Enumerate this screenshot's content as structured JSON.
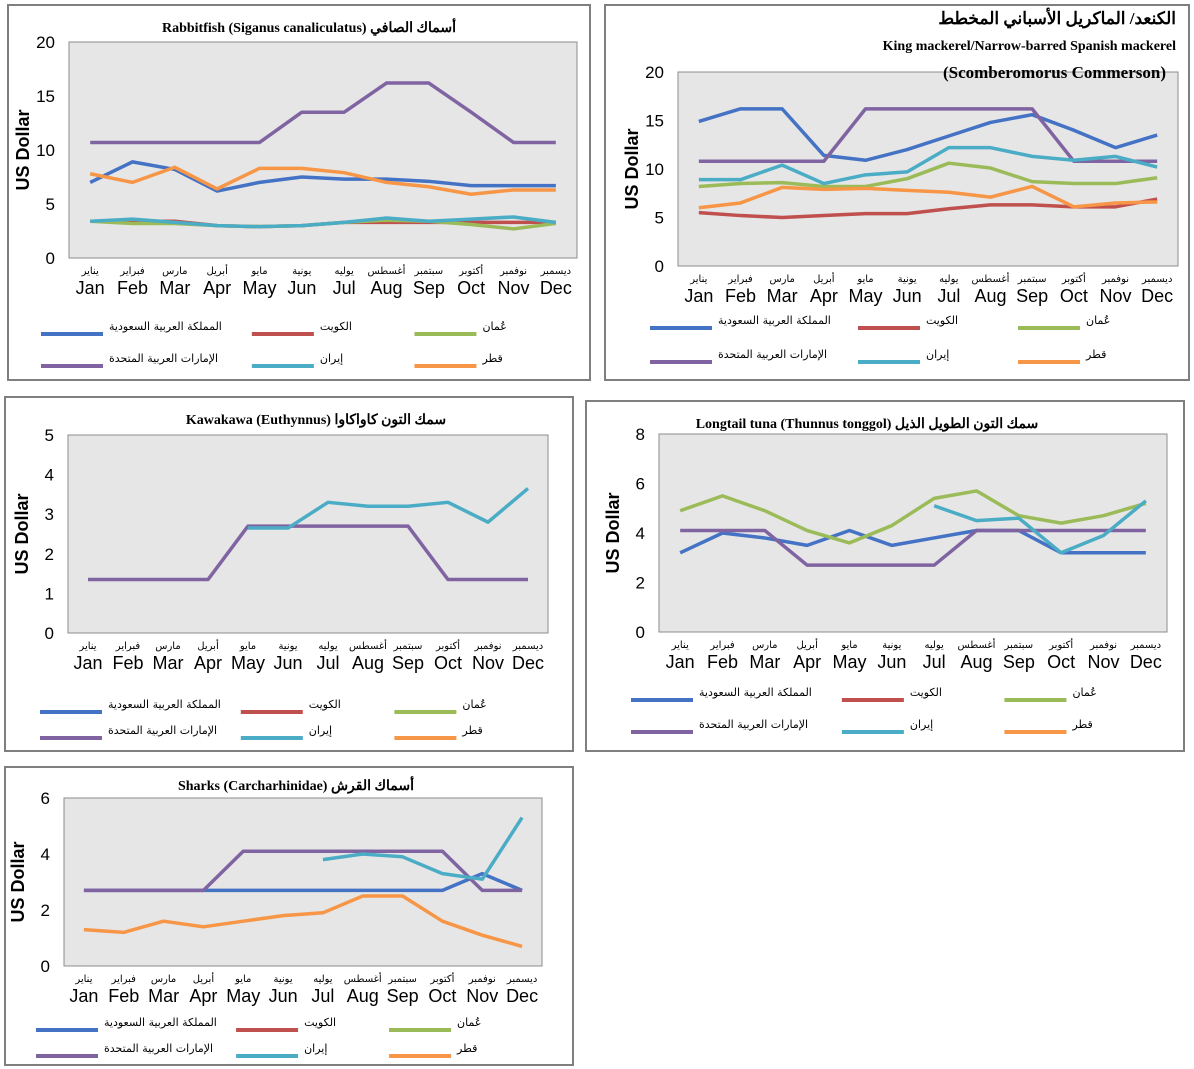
{
  "colors": {
    "saudi": "#4472C4",
    "kuwait": "#C0504D",
    "oman": "#9BBB59",
    "uae": "#8064A2",
    "iran": "#4BACC6",
    "qatar": "#F79646",
    "plot_bg": "#E6E6E6"
  },
  "legend_labels": {
    "saudi": "المملكة العربية السعودية",
    "kuwait": "الكويت",
    "oman": "عُمان",
    "uae": "الإمارات العربية المتحدة",
    "iran": "إيران",
    "qatar": "قطر"
  },
  "months_en": [
    "Jan",
    "Feb",
    "Mar",
    "Apr",
    "May",
    "Jun",
    "Jul",
    "Aug",
    "Sep",
    "Oct",
    "Nov",
    "Dec"
  ],
  "months_ar": [
    "يناير",
    "فبراير",
    "مارس",
    "أبريل",
    "مايو",
    "يونية",
    "يوليه",
    "أغسطس",
    "سبتمبر",
    "أكتوبر",
    "نوفمبر",
    "ديسمبر"
  ],
  "chart_data": [
    {
      "type": "line",
      "title": "Rabbitfish (Siganus canaliculatus) أسماك الصافي",
      "subtitle": "",
      "ylabel": "US Dollar",
      "ylim": [
        0,
        20
      ],
      "yticks": [
        0,
        5,
        10,
        15,
        20
      ],
      "grid": false,
      "legend": "bottom",
      "series": [
        {
          "key": "saudi",
          "values": [
            7.0,
            8.9,
            8.2,
            6.2,
            7.0,
            7.5,
            7.3,
            7.3,
            7.1,
            6.7,
            6.7,
            6.7
          ]
        },
        {
          "key": "kuwait",
          "values": [
            3.4,
            3.4,
            3.4,
            3.0,
            2.9,
            3.0,
            3.3,
            3.3,
            3.3,
            3.3,
            3.3,
            3.3
          ]
        },
        {
          "key": "oman",
          "values": [
            3.4,
            3.2,
            3.2,
            3.0,
            2.9,
            3.0,
            3.3,
            3.5,
            3.4,
            3.1,
            2.7,
            3.2
          ]
        },
        {
          "key": "uae",
          "values": [
            10.7,
            10.7,
            10.7,
            10.7,
            10.7,
            13.5,
            13.5,
            16.2,
            16.2,
            13.5,
            10.7,
            10.7
          ]
        },
        {
          "key": "iran",
          "values": [
            3.4,
            3.6,
            3.3,
            3.0,
            2.9,
            3.0,
            3.3,
            3.7,
            3.4,
            3.6,
            3.8,
            3.3
          ]
        },
        {
          "key": "qatar",
          "values": [
            7.8,
            7.0,
            8.4,
            6.4,
            8.3,
            8.3,
            7.9,
            7.0,
            6.6,
            5.9,
            6.3,
            6.3
          ]
        }
      ]
    },
    {
      "type": "line",
      "title": "الكنعد/ الماكريل الأسباني المخطط",
      "subtitle": "King mackerel/Narrow-barred Spanish mackerel",
      "subtitle2": "(Scomberomorus Commerson)",
      "ylabel": "US Dollar",
      "ylim": [
        0,
        20
      ],
      "yticks": [
        0,
        5,
        10,
        15,
        20
      ],
      "grid": false,
      "legend": "bottom",
      "series": [
        {
          "key": "saudi",
          "values": [
            14.9,
            16.2,
            16.2,
            11.4,
            10.9,
            12.0,
            13.4,
            14.8,
            15.6,
            14.0,
            12.2,
            13.5
          ]
        },
        {
          "key": "kuwait",
          "values": [
            5.5,
            5.2,
            5.0,
            5.2,
            5.4,
            5.4,
            5.9,
            6.3,
            6.3,
            6.1,
            6.1,
            6.9
          ]
        },
        {
          "key": "oman",
          "values": [
            8.2,
            8.5,
            8.6,
            8.2,
            8.2,
            9.0,
            10.6,
            10.1,
            8.7,
            8.5,
            8.5,
            9.1
          ]
        },
        {
          "key": "uae",
          "values": [
            10.8,
            10.8,
            10.8,
            10.8,
            16.2,
            16.2,
            16.2,
            16.2,
            16.2,
            10.8,
            10.8,
            10.8
          ]
        },
        {
          "key": "iran",
          "values": [
            8.9,
            8.9,
            10.4,
            8.5,
            9.4,
            9.7,
            12.2,
            12.2,
            11.3,
            10.9,
            11.3,
            10.2
          ]
        },
        {
          "key": "qatar",
          "values": [
            6.0,
            6.5,
            8.1,
            7.9,
            8.0,
            7.8,
            7.6,
            7.1,
            8.2,
            6.1,
            6.5,
            6.6
          ]
        }
      ]
    },
    {
      "type": "line",
      "title": "Kawakawa (Euthynnus) سمك التون كاواكاوا",
      "subtitle": "",
      "ylabel": "US Dollar",
      "ylim": [
        0,
        5
      ],
      "yticks": [
        0,
        1,
        2,
        3,
        4,
        5
      ],
      "grid": false,
      "legend": "bottom",
      "series": [
        {
          "key": "saudi",
          "values": [
            null,
            null,
            null,
            null,
            null,
            null,
            null,
            null,
            null,
            null,
            null,
            null
          ]
        },
        {
          "key": "kuwait",
          "values": [
            null,
            null,
            null,
            null,
            null,
            null,
            null,
            null,
            null,
            null,
            null,
            null
          ]
        },
        {
          "key": "oman",
          "values": [
            null,
            null,
            null,
            null,
            null,
            null,
            null,
            null,
            null,
            null,
            null,
            null
          ]
        },
        {
          "key": "uae",
          "values": [
            1.35,
            1.35,
            1.35,
            1.35,
            2.7,
            2.7,
            2.7,
            2.7,
            2.7,
            1.35,
            1.35,
            1.35
          ]
        },
        {
          "key": "iran",
          "values": [
            null,
            null,
            null,
            null,
            2.65,
            2.65,
            3.3,
            3.2,
            3.2,
            3.3,
            2.8,
            3.65
          ]
        },
        {
          "key": "qatar",
          "values": [
            null,
            null,
            null,
            null,
            null,
            null,
            null,
            null,
            null,
            null,
            null,
            null
          ]
        }
      ]
    },
    {
      "type": "line",
      "title": "Longtail tuna (Thunnus tonggol) سمك التون الطويل الذيل",
      "subtitle": "",
      "ylabel": "US Dollar",
      "ylim": [
        0,
        8
      ],
      "yticks": [
        0,
        2,
        4,
        6,
        8
      ],
      "grid": false,
      "legend": "bottom",
      "series": [
        {
          "key": "saudi",
          "values": [
            3.2,
            4.0,
            3.8,
            3.5,
            4.1,
            3.5,
            3.8,
            4.1,
            4.1,
            3.2,
            3.2,
            3.2
          ]
        },
        {
          "key": "kuwait",
          "values": [
            null,
            null,
            null,
            null,
            null,
            null,
            null,
            null,
            null,
            null,
            null,
            null
          ]
        },
        {
          "key": "oman",
          "values": [
            4.9,
            5.5,
            4.9,
            4.1,
            3.6,
            4.3,
            5.4,
            5.7,
            4.7,
            4.4,
            4.7,
            5.2
          ]
        },
        {
          "key": "uae",
          "values": [
            4.1,
            4.1,
            4.1,
            2.7,
            2.7,
            2.7,
            2.7,
            4.1,
            4.1,
            4.1,
            4.1,
            4.1
          ]
        },
        {
          "key": "iran",
          "values": [
            null,
            null,
            null,
            null,
            null,
            null,
            5.1,
            4.5,
            4.6,
            3.2,
            3.9,
            5.3
          ]
        },
        {
          "key": "qatar",
          "values": [
            null,
            null,
            null,
            null,
            null,
            null,
            null,
            null,
            null,
            null,
            null,
            null
          ]
        }
      ]
    },
    {
      "type": "line",
      "title": "Sharks (Carcharhinidae) أسماك القرش",
      "subtitle": "",
      "ylabel": "US Dollar",
      "ylim": [
        0,
        6
      ],
      "yticks": [
        0,
        2,
        4,
        6
      ],
      "grid": false,
      "legend": "bottom",
      "series": [
        {
          "key": "saudi",
          "values": [
            2.7,
            2.7,
            2.7,
            2.7,
            2.7,
            2.7,
            2.7,
            2.7,
            2.7,
            2.7,
            3.3,
            2.7
          ]
        },
        {
          "key": "kuwait",
          "values": [
            null,
            null,
            null,
            null,
            null,
            null,
            null,
            null,
            null,
            null,
            null,
            null
          ]
        },
        {
          "key": "oman",
          "values": [
            null,
            null,
            null,
            null,
            null,
            null,
            null,
            null,
            null,
            null,
            null,
            null
          ]
        },
        {
          "key": "uae",
          "values": [
            2.7,
            2.7,
            2.7,
            2.7,
            4.1,
            4.1,
            4.1,
            4.1,
            4.1,
            4.1,
            2.7,
            2.7
          ]
        },
        {
          "key": "iran",
          "values": [
            null,
            null,
            null,
            null,
            null,
            null,
            3.8,
            4.0,
            3.9,
            3.3,
            3.1,
            5.3
          ]
        },
        {
          "key": "qatar",
          "values": [
            1.3,
            1.2,
            1.6,
            1.4,
            1.6,
            1.8,
            1.9,
            2.5,
            2.5,
            1.6,
            1.1,
            0.7
          ]
        }
      ]
    }
  ]
}
